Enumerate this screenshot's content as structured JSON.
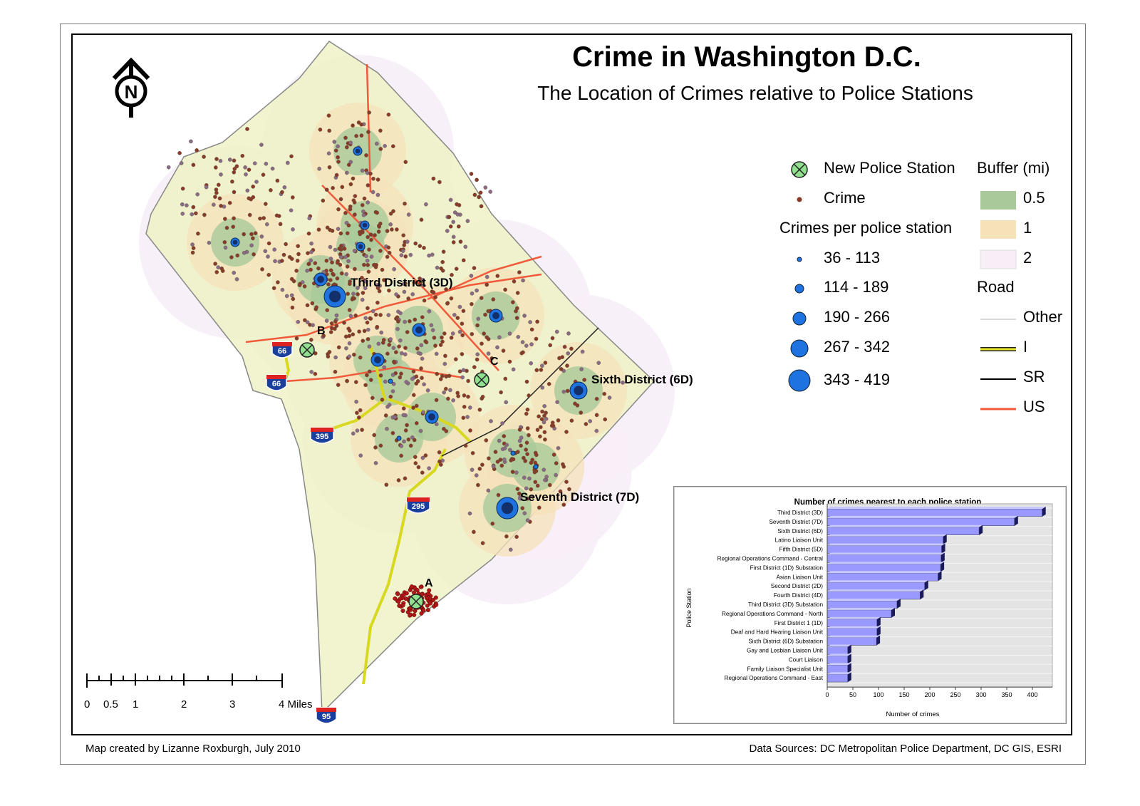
{
  "title": "Crime in Washington D.C.",
  "subtitle": "The Location of Crimes relative to Police Stations",
  "north_arrow_letter": "N",
  "legend": {
    "new_station": "New Police Station",
    "crime": "Crime",
    "crimes_per_station_title": "Crimes per police station",
    "classes": [
      "36 - 113",
      "114 - 189",
      "190 - 266",
      "267 - 342",
      "343 - 419"
    ],
    "buffer_title": "Buffer (mi)",
    "buffers": [
      "0.5",
      "1",
      "2"
    ],
    "road_title": "Road",
    "roads": [
      "Other",
      "I",
      "SR",
      "US"
    ]
  },
  "colors": {
    "buffer_05": "#a9c99a",
    "buffer_1": "#f6e2b9",
    "buffer_2": "#f7eef7",
    "dc_land": "#eef2c7",
    "crime_dot": "#8a3a2a",
    "station_blue": "#1e73e0",
    "new_station": "#90e090",
    "road_us": "#f05a3a",
    "road_i": "#d8d820"
  },
  "map_labels": {
    "third": "Third District (3D)",
    "sixth": "Sixth District (6D)",
    "seventh": "Seventh District (7D)",
    "a": "A",
    "b": "B",
    "c": "C"
  },
  "highway_shields": [
    "66",
    "66",
    "395",
    "295",
    "95"
  ],
  "scale_bar": {
    "ticks": [
      "0",
      "0.5",
      "1",
      "2",
      "3",
      "4 Miles"
    ]
  },
  "footer": {
    "left": "Map created by Lizanne Roxburgh, July 2010",
    "right": "Data Sources: DC Metropolitan Police Department, DC GIS, ESRI"
  },
  "chart_data": {
    "type": "bar",
    "orientation": "horizontal",
    "title": "Number of crimes nearest to each police station",
    "xlabel": "Number of crimes",
    "ylabel": "Police Station",
    "xlim": [
      0,
      425
    ],
    "xticks": [
      0,
      50,
      100,
      150,
      200,
      250,
      300,
      350,
      400
    ],
    "categories": [
      "Third District (3D)",
      "Seventh District (7D)",
      "Sixth District (6D)",
      "Latino Liaison Unit",
      "Fifth District (5D)",
      "Regional Operations Command - Central",
      "First District (1D) Substation",
      "Asian Liaison Unit",
      "Second District (2D)",
      "Fourth District (4D)",
      "Third District (3D) Substation",
      "Regional Operations Command - North",
      "First District 1 (1D)",
      "Deaf and Hard Hearing Liaison Unit",
      "Sixth District (6D) Substation",
      "Gay and Lesbian Liaison Unit",
      "Court Liaison",
      "Family Liaison Specialist Unit",
      "Regional Operations Command - East"
    ],
    "values": [
      419,
      365,
      296,
      226,
      223,
      222,
      221,
      216,
      190,
      181,
      136,
      125,
      97,
      97,
      96,
      40,
      40,
      40,
      40
    ],
    "bar_color": "#9999ff",
    "grid": true
  }
}
